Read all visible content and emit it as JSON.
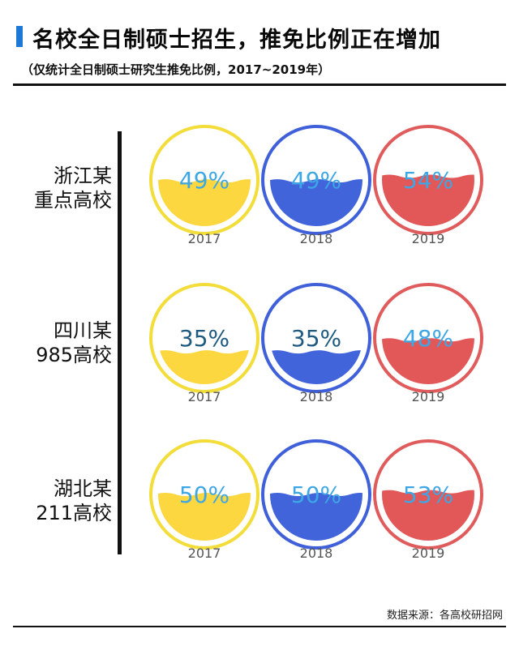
{
  "header": {
    "title": "名校全日制硕士招生，推免比例正在增加",
    "subtitle": "（仅统计全日制硕士研究生推免比例，2017~2019年）"
  },
  "footer": {
    "source": "数据来源：各高校研招网"
  },
  "colors": {
    "2017": {
      "fill": "#fdd73f",
      "ring": "#f2dd3a"
    },
    "2018": {
      "fill": "#4264db",
      "ring": "#3f60d9"
    },
    "2019": {
      "fill": "#e25858",
      "ring": "#e05b5b"
    },
    "pct_text": "#3da7e6",
    "pct_text_dark": "#1f5a80",
    "year_text": "#555555"
  },
  "chart_data": {
    "type": "liquid-fill",
    "title": "名校全日制硕士招生，推免比例正在增加",
    "years": [
      "2017",
      "2018",
      "2019"
    ],
    "rows": [
      {
        "name_line1": "浙江某",
        "name_line2": "重点高校",
        "values": [
          49,
          49,
          54
        ],
        "labels": [
          "49%",
          "49%",
          "54%"
        ]
      },
      {
        "name_line1": "四川某",
        "name_line2": "985高校",
        "values": [
          35,
          35,
          48
        ],
        "labels": [
          "35%",
          "35%",
          "48%"
        ]
      },
      {
        "name_line1": "湖北某",
        "name_line2": "211高校",
        "values": [
          50,
          50,
          53
        ],
        "labels": [
          "50%",
          "50%",
          "53%"
        ]
      }
    ]
  }
}
